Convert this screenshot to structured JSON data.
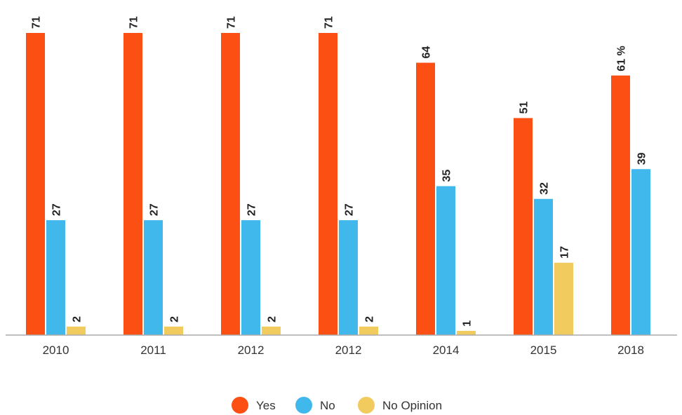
{
  "chart_data": {
    "type": "bar",
    "categories": [
      "2010",
      "2011",
      "2012",
      "2012",
      "2014",
      "2015",
      "2018"
    ],
    "series": [
      {
        "name": "Yes",
        "color": "#fb4f14",
        "values": [
          71,
          71,
          71,
          71,
          64,
          51,
          61
        ],
        "labels": [
          "71",
          "71",
          "71",
          "71",
          "64",
          "51",
          "61 %"
        ]
      },
      {
        "name": "No",
        "color": "#40b8ec",
        "values": [
          27,
          27,
          27,
          27,
          35,
          32,
          39
        ],
        "labels": [
          "27",
          "27",
          "27",
          "27",
          "35",
          "32",
          "39"
        ]
      },
      {
        "name": "No Opinion",
        "color": "#f2cb5f",
        "values": [
          2,
          2,
          2,
          2,
          1,
          17,
          null
        ],
        "labels": [
          "2",
          "2",
          "2",
          "2",
          "1",
          "17",
          ""
        ]
      }
    ],
    "title": "",
    "xlabel": "",
    "ylabel": "",
    "ylim": [
      0,
      71
    ],
    "grid": false,
    "legend_position": "bottom-center",
    "colors": {
      "axis": "#aaaaaa",
      "text": "#222222"
    }
  }
}
